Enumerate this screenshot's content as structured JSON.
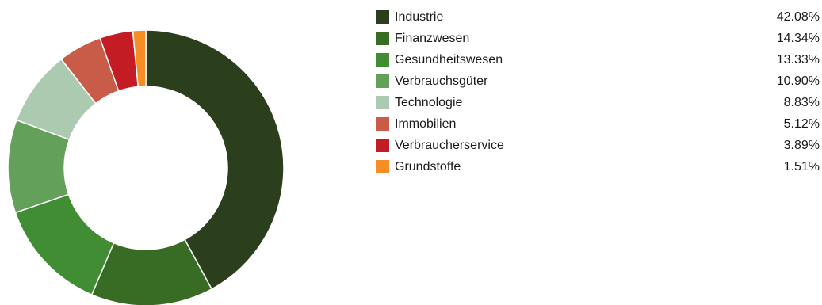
{
  "chart_data": {
    "type": "pie",
    "variant": "donut",
    "title": "",
    "legend_position": "right",
    "categories": [
      "Industrie",
      "Finanzwesen",
      "Gesundheitswesen",
      "Verbrauchsgüter",
      "Technologie",
      "Immobilien",
      "Verbraucherservice",
      "Grundstoffe"
    ],
    "values": [
      42.08,
      14.34,
      13.33,
      10.9,
      8.83,
      5.12,
      3.89,
      1.51
    ],
    "value_labels": [
      "42.08%",
      "14.34%",
      "13.33%",
      "10.90%",
      "8.83%",
      "5.12%",
      "3.89%",
      "1.51%"
    ],
    "colors": [
      "#2c3f1d",
      "#386b23",
      "#418d34",
      "#63a05a",
      "#abcab0",
      "#c85c48",
      "#c41c25",
      "#f68e25"
    ]
  }
}
